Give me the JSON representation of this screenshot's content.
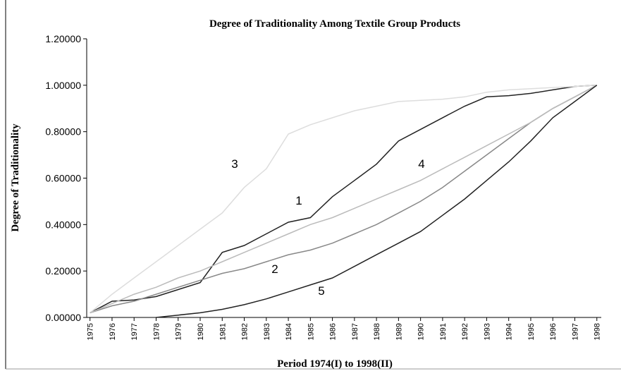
{
  "chart_data": {
    "type": "line",
    "title": "Degree of Traditionality Among Textile Group Products",
    "xlabel": "Period 1974(I) to 1998(II)",
    "ylabel": "Degree of Traditionality",
    "x": [
      1975,
      1976,
      1977,
      1978,
      1979,
      1980,
      1981,
      1982,
      1983,
      1984,
      1985,
      1986,
      1987,
      1988,
      1989,
      1990,
      1991,
      1992,
      1993,
      1994,
      1995,
      1996,
      1997,
      1998
    ],
    "xlim": [
      1974.85,
      1998.2
    ],
    "xticks": [
      1975,
      1976,
      1977,
      1978,
      1979,
      1980,
      1981,
      1982,
      1983,
      1984,
      1985,
      1986,
      1987,
      1988,
      1989,
      1990,
      1991,
      1992,
      1993,
      1994,
      1995,
      1996,
      1997,
      1998
    ],
    "ylim": [
      0,
      1.2
    ],
    "yticks": [
      {
        "value": 0,
        "label": "0.00000"
      },
      {
        "value": 0.2,
        "label": "0.20000"
      },
      {
        "value": 0.4,
        "label": "0.40000"
      },
      {
        "value": 0.6,
        "label": "0.60000"
      },
      {
        "value": 0.8,
        "label": "0.80000"
      },
      {
        "value": 1.0,
        "label": "1.00000"
      },
      {
        "value": 1.2,
        "label": "1.20000"
      }
    ],
    "series": [
      {
        "name": "1",
        "color": "#222222",
        "values": [
          0.02,
          0.07,
          0.075,
          0.09,
          0.12,
          0.15,
          0.28,
          0.31,
          0.36,
          0.41,
          0.43,
          0.52,
          0.59,
          0.66,
          0.76,
          0.81,
          0.86,
          0.91,
          0.95,
          0.955,
          0.965,
          0.98,
          0.995,
          1.0
        ]
      },
      {
        "name": "2",
        "color": "#888888",
        "values": [
          0.02,
          0.05,
          0.07,
          0.1,
          0.13,
          0.16,
          0.19,
          0.21,
          0.24,
          0.27,
          0.29,
          0.32,
          0.36,
          0.4,
          0.45,
          0.5,
          0.56,
          0.63,
          0.7,
          0.77,
          0.84,
          0.9,
          0.95,
          1.0
        ]
      },
      {
        "name": "3",
        "color": "#dddddd",
        "values": [
          0.02,
          0.1,
          0.17,
          0.24,
          0.31,
          0.38,
          0.45,
          0.56,
          0.64,
          0.79,
          0.83,
          0.86,
          0.89,
          0.91,
          0.93,
          0.935,
          0.94,
          0.95,
          0.97,
          0.98,
          0.985,
          0.99,
          0.995,
          1.0
        ]
      },
      {
        "name": "4",
        "color": "#bbbbbb",
        "values": [
          0.02,
          0.06,
          0.1,
          0.13,
          0.17,
          0.2,
          0.24,
          0.28,
          0.32,
          0.36,
          0.4,
          0.43,
          0.47,
          0.51,
          0.55,
          0.59,
          0.64,
          0.69,
          0.74,
          0.79,
          0.84,
          0.9,
          0.95,
          1.0
        ]
      },
      {
        "name": "5",
        "color": "#222222",
        "values": [
          null,
          null,
          null,
          0,
          0.01,
          0.02,
          0.035,
          0.055,
          0.08,
          0.11,
          0.14,
          0.17,
          0.22,
          0.27,
          0.32,
          0.37,
          0.44,
          0.51,
          0.59,
          0.67,
          0.76,
          0.86,
          0.93,
          1.0
        ]
      }
    ]
  }
}
